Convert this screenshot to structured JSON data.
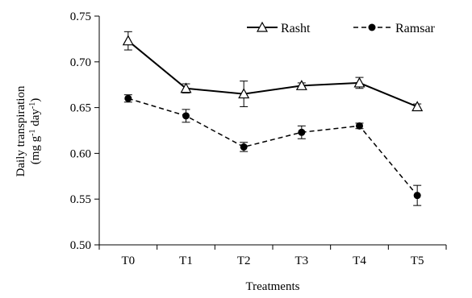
{
  "chart_data": {
    "type": "line",
    "categories": [
      "T0",
      "T1",
      "T2",
      "T3",
      "T4",
      "T5"
    ],
    "series": [
      {
        "name": "Rasht",
        "values": [
          0.723,
          0.671,
          0.665,
          0.674,
          0.677,
          0.651
        ],
        "errors": [
          0.01,
          0.005,
          0.014,
          0.003,
          0.006,
          0.003
        ],
        "marker": "open-triangle",
        "line_style": "solid",
        "color": "#000000"
      },
      {
        "name": "Ramsar",
        "values": [
          0.66,
          0.641,
          0.607,
          0.623,
          0.63,
          0.554
        ],
        "errors": [
          0.004,
          0.007,
          0.005,
          0.007,
          0.003,
          0.011
        ],
        "marker": "filled-circle",
        "line_style": "dashed",
        "color": "#000000"
      }
    ],
    "xlabel": "Treatments",
    "ylabel": {
      "line1": "Daily transpiration",
      "line2_pre": "(mg g",
      "line2_sup1": "-1",
      "line2_mid": " day",
      "line2_sup2": "-1",
      "line2_post": ")"
    },
    "ylim": [
      0.5,
      0.75
    ],
    "yticks": [
      "0.50",
      "0.55",
      "0.60",
      "0.65",
      "0.70",
      "0.75"
    ],
    "grid": false,
    "legend_position": "top"
  }
}
